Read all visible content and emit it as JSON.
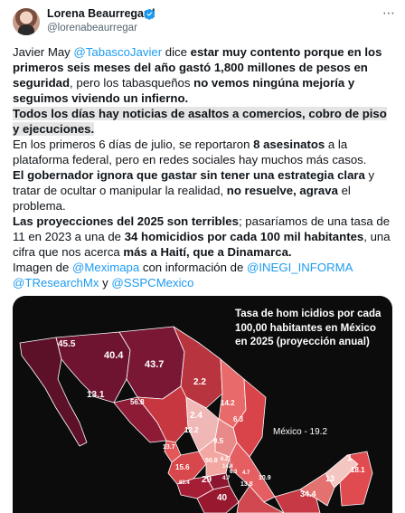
{
  "author": {
    "name": "Lorena Beaurregard",
    "handle": "@lorenabeaurregar"
  },
  "more_icon": "⋯",
  "tweet": {
    "p1": {
      "t1": "Javier May ",
      "m1": "@TabascoJavier",
      "t2": " dice ",
      "b1": "estar muy contento porque en los primeros seis meses del año gastó 1,800 millones de pesos en seguridad",
      "t3": ", pero los tabasqueños ",
      "b2": "no vemos ningúna mejoría y seguimos viviendo un infierno."
    },
    "p2": {
      "b1": "Todos los días hay noticias de asaltos a comercios, cobro de piso y ejecuciones."
    },
    "p3": {
      "t1": "En los primeros 6 días de julio, se reportaron ",
      "b1": "8 asesinatos",
      "t2": " a la plataforma federal, pero en redes sociales hay muchos más casos."
    },
    "p4": {
      "b1": "El gobernador ignora que gastar sin tener una estrategia clara",
      "t1": " y tratar de ocultar o manipular la realidad, ",
      "b2": "no resuelve, agrava",
      "t2": " el problema."
    },
    "p5": {
      "b1": "Las proyecciones del 2025 son terribles",
      "t1": "; pasaríamos de una tasa de 11 en 2023 a una de ",
      "b2": "34 homicidios por cada 100 mil habitantes",
      "t2": ", una cifra que nos acerca ",
      "b3": "más a Haití, que a Dinamarca."
    },
    "p6": {
      "t1": "Imagen de ",
      "m1": "@Meximapa",
      "t2": " con información de ",
      "m2": "@INEGI_INFORMA",
      "m3": "@TResearchMx",
      "t3": " y ",
      "m4": "@SSPCMexico"
    }
  },
  "map": {
    "title": "Tasa de hom icidios por cada 100,00 habitantes en México en 2025 (proyección anual)",
    "national_label": "México - 19.2",
    "labels": [
      "45.5",
      "40.4",
      "43.7",
      "13.1",
      "56.8",
      "2.2",
      "14.2",
      "2.4",
      "6.3",
      "12.2",
      "9.5",
      "13.7",
      "15.6",
      "50.8",
      "6.2",
      "4.7",
      "14.4",
      "10.9",
      "6.3",
      "1",
      "18.1",
      "83.4",
      "29",
      "4.7",
      "13.8",
      "34.4",
      "13",
      "40"
    ]
  },
  "colors": {
    "accent": "#1d9bf0",
    "highlight": "#e5e5e5",
    "map_bg": "#0c0c0c"
  }
}
